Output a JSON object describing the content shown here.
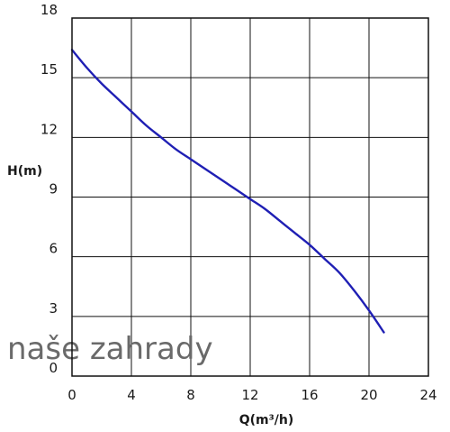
{
  "chart_data": {
    "type": "line",
    "title": "",
    "xlabel": "Q(m³/h)",
    "ylabel": "H(m)",
    "xlim": [
      0,
      24
    ],
    "ylim": [
      0,
      18
    ],
    "x_ticks": [
      "0",
      "4",
      "8",
      "12",
      "16",
      "20",
      "24"
    ],
    "y_ticks": [
      "0",
      "3",
      "6",
      "9",
      "12",
      "15",
      "18"
    ],
    "grid": true,
    "series": [
      {
        "color": "#1f1fb4",
        "x": [
          0,
          1,
          2,
          3,
          4,
          5,
          6,
          7,
          8,
          9,
          10,
          11,
          12,
          13,
          14,
          15,
          16,
          17,
          18,
          19,
          20,
          21
        ],
        "y": [
          16.4,
          15.5,
          14.7,
          14.0,
          13.3,
          12.6,
          12.0,
          11.4,
          10.9,
          10.4,
          9.9,
          9.4,
          8.9,
          8.4,
          7.8,
          7.2,
          6.6,
          5.9,
          5.2,
          4.3,
          3.3,
          2.2
        ]
      }
    ]
  },
  "watermark": "naše zahrady"
}
